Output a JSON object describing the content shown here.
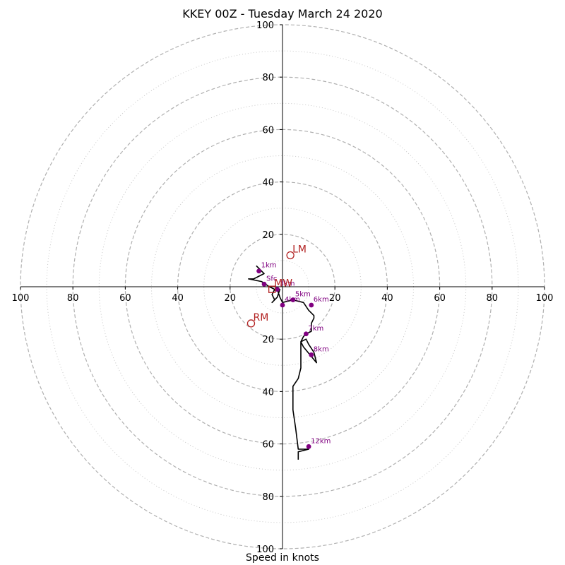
{
  "chart_data": {
    "type": "hodograph",
    "title": "KKEY 00Z - Tuesday March 24 2020",
    "xlabel": "Speed in knots",
    "xlim": [
      -100,
      100
    ],
    "ylim": [
      -100,
      100
    ],
    "ring_major": [
      20,
      40,
      60,
      80,
      100
    ],
    "ring_minor": [
      10,
      30,
      50,
      70,
      90
    ],
    "x_tick_labels": [
      "100",
      "80",
      "60",
      "40",
      "20",
      "20",
      "40",
      "60",
      "80",
      "100"
    ],
    "y_tick_labels": [
      "100",
      "80",
      "60",
      "40",
      "20",
      "20",
      "40",
      "60",
      "80",
      "100"
    ],
    "hodograph_trace": [
      [
        -10,
        8
      ],
      [
        -9,
        7
      ],
      [
        -7,
        5
      ],
      [
        -11,
        3
      ],
      [
        -13,
        3
      ],
      [
        -8,
        2
      ],
      [
        -5,
        0
      ],
      [
        -3,
        -1
      ],
      [
        -4,
        -3
      ],
      [
        -3,
        -5
      ],
      [
        -4,
        -6
      ],
      [
        -2,
        -4
      ],
      [
        -1,
        -1
      ],
      [
        -2,
        -1
      ],
      [
        -1,
        -4
      ],
      [
        0,
        -6
      ],
      [
        4,
        -5
      ],
      [
        8,
        -6
      ],
      [
        10,
        -9
      ],
      [
        11,
        -10
      ],
      [
        12,
        -11
      ],
      [
        12,
        -12
      ],
      [
        11,
        -14
      ],
      [
        11,
        -15
      ],
      [
        11,
        -17
      ],
      [
        9,
        -18
      ],
      [
        8,
        -19
      ],
      [
        7,
        -21
      ],
      [
        9,
        -20
      ],
      [
        10,
        -22
      ],
      [
        12,
        -25
      ],
      [
        13,
        -29
      ],
      [
        8,
        -23
      ],
      [
        7,
        -21
      ],
      [
        7,
        -25
      ],
      [
        7,
        -31
      ],
      [
        6,
        -35
      ],
      [
        4,
        -38
      ],
      [
        4,
        -41
      ],
      [
        4,
        -47
      ],
      [
        5,
        -54
      ],
      [
        6,
        -62
      ],
      [
        10,
        -62
      ],
      [
        6,
        -63
      ],
      [
        6,
        -66
      ]
    ],
    "height_markers": [
      {
        "label": "1km",
        "x": -9,
        "y": 6
      },
      {
        "label": "Sfc",
        "x": -7,
        "y": 1
      },
      {
        "label": "3km",
        "x": -2,
        "y": -1
      },
      {
        "label": "4km",
        "x": 0,
        "y": -7
      },
      {
        "label": "5km",
        "x": 4,
        "y": -5
      },
      {
        "label": "6km",
        "x": 11,
        "y": -7
      },
      {
        "label": "7km",
        "x": 9,
        "y": -18
      },
      {
        "label": "8km",
        "x": 11,
        "y": -26
      },
      {
        "label": "12km",
        "x": 10,
        "y": -61
      }
    ],
    "storm_motion": [
      {
        "label": "LM",
        "x": 3,
        "y": 12,
        "shape": "circle"
      },
      {
        "label": "RM",
        "x": -12,
        "y": -14,
        "shape": "circle"
      },
      {
        "label": "MW",
        "x": -4,
        "y": -1,
        "shape": "square"
      }
    ],
    "colors": {
      "trace": "#000000",
      "height_markers": "#800080",
      "storm_motion": "#b22222",
      "ring_major": "#b0b0b0",
      "ring_minor": "#c8c8c8",
      "axes": "#000000"
    },
    "grid": true,
    "legend": "none"
  }
}
